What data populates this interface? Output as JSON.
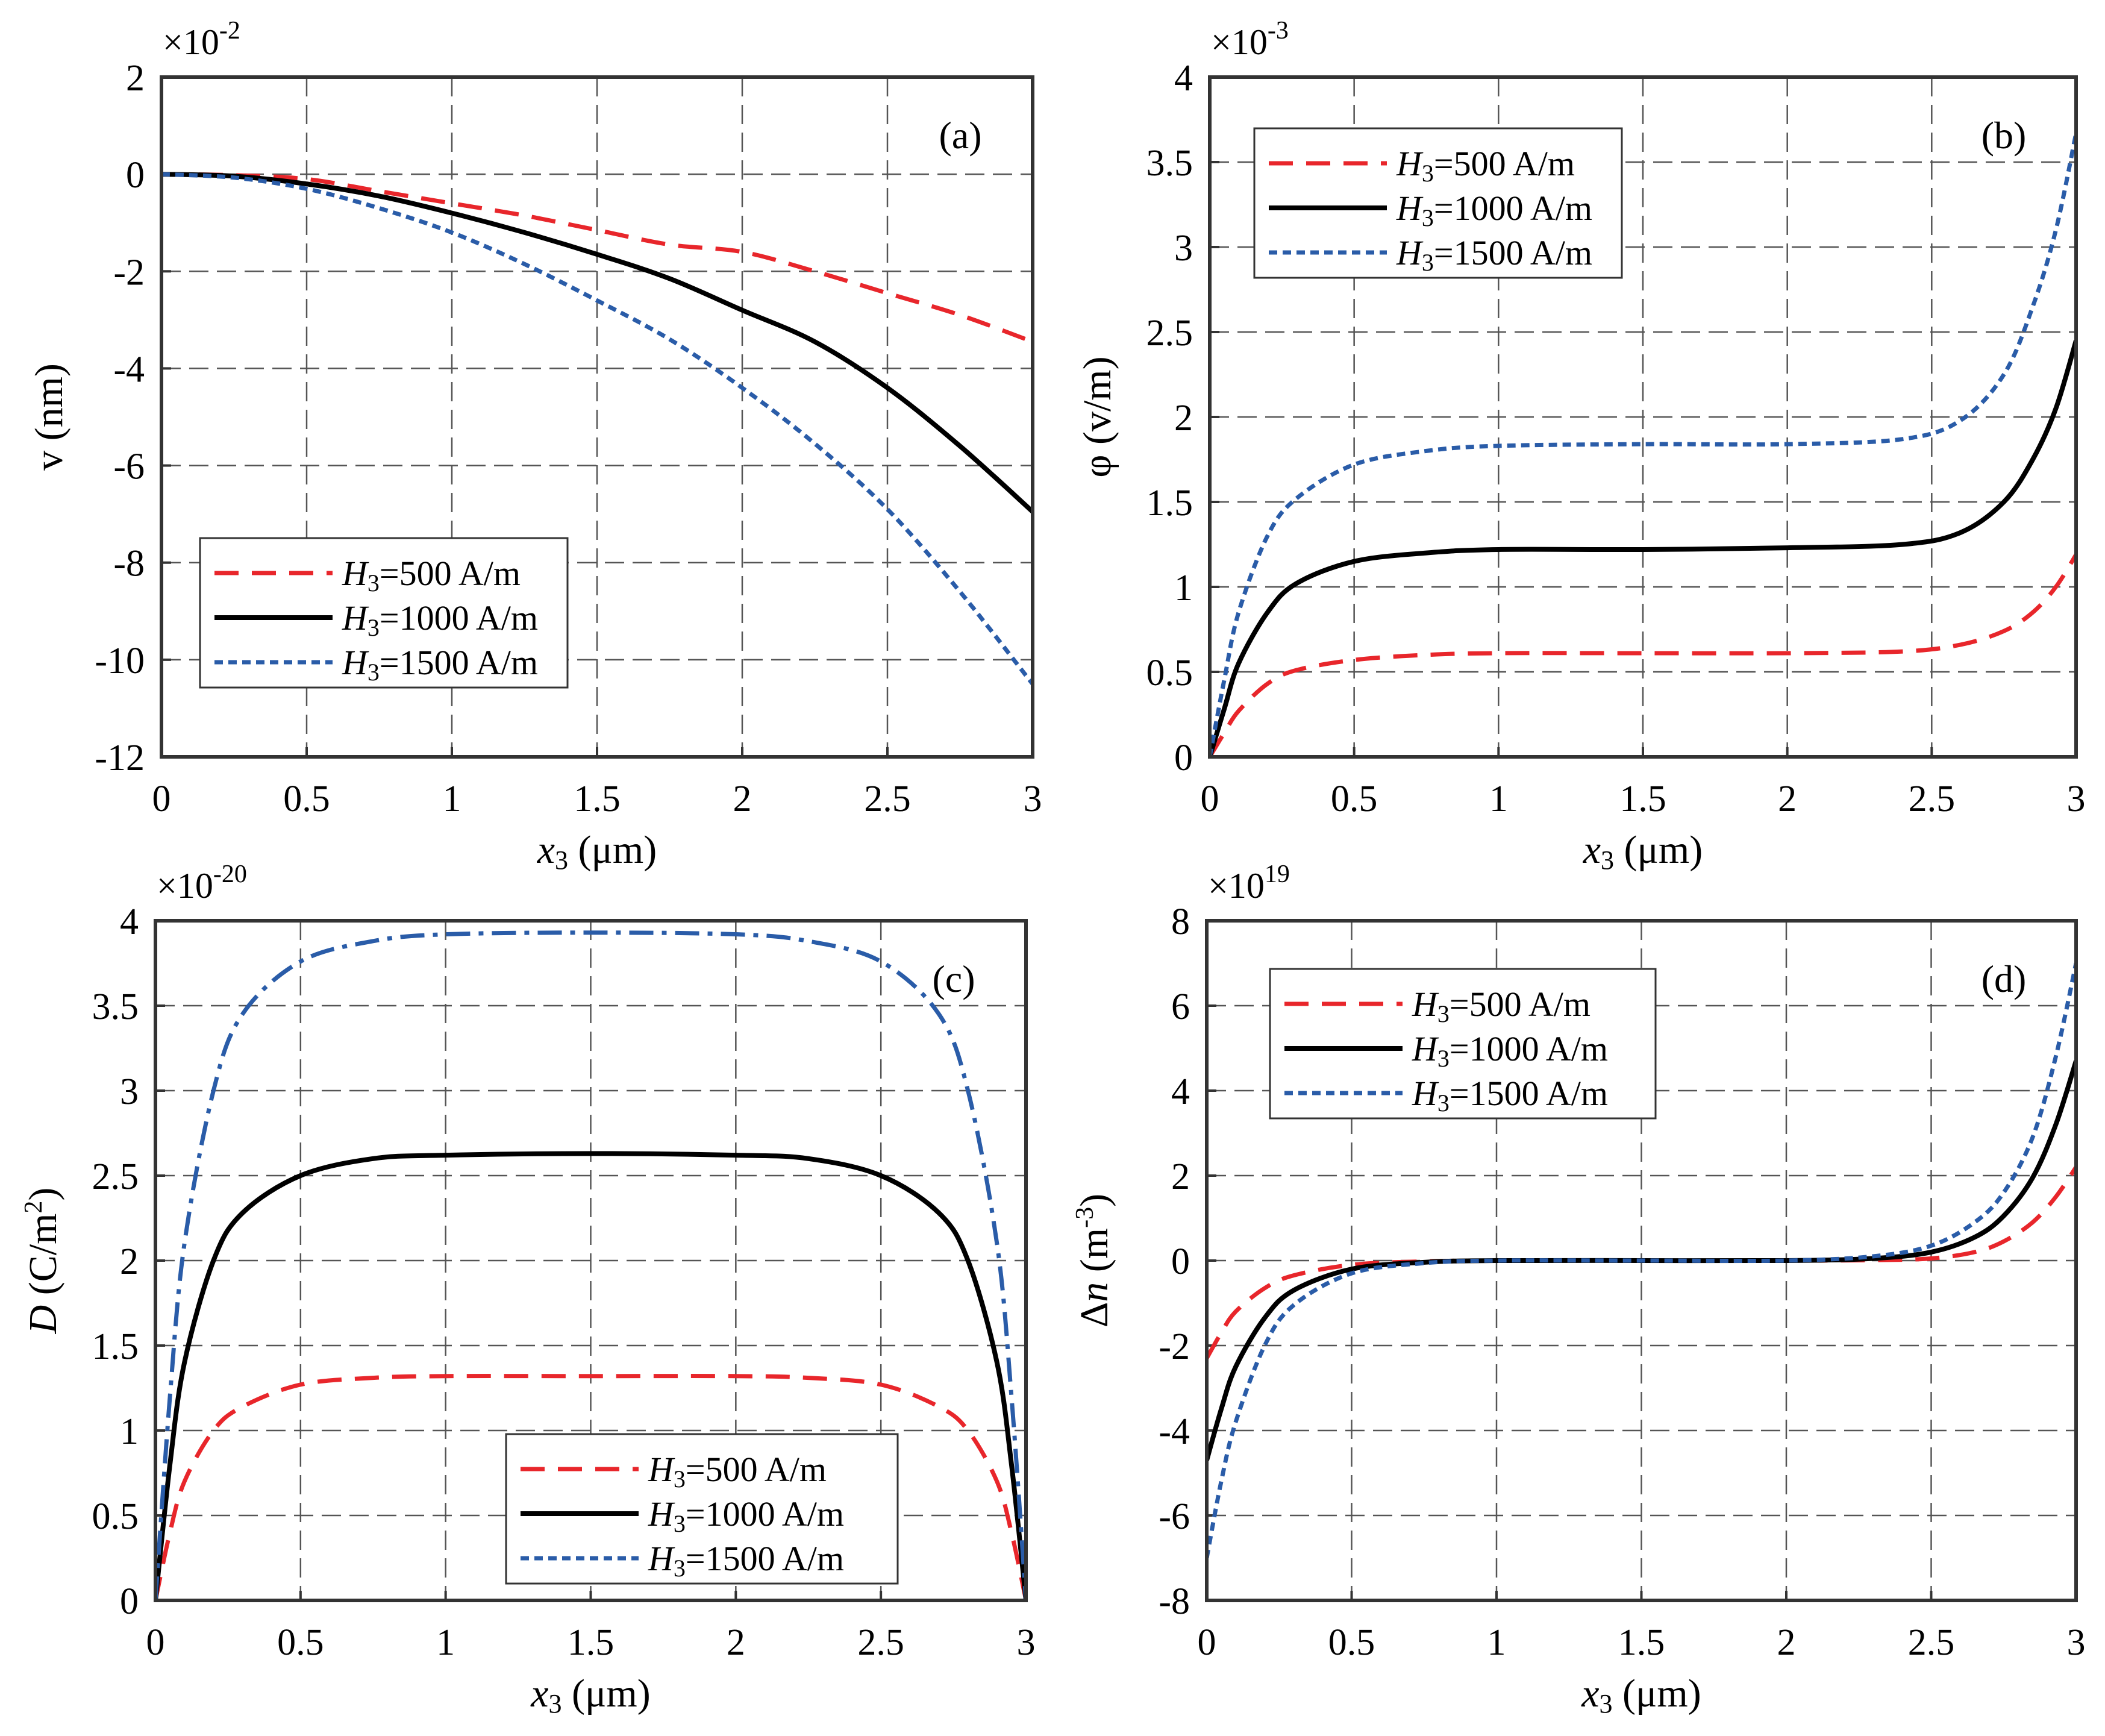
{
  "colors": {
    "red": "#e8262b",
    "black": "#000000",
    "blue": "#2a5ca8"
  },
  "legend_entries": [
    "=500 A/m",
    "=1000 A/m",
    "=1500 A/m"
  ],
  "legend_symbol": "H",
  "legend_symbol_sub": "3",
  "chart_data": [
    {
      "type": "line",
      "panel_label": "(a)",
      "exponent_text": "×10",
      "exponent": "-2",
      "ylabel": "v (nm)",
      "xlabel_main": "x",
      "xlabel_sub": "3",
      "xlabel_unit": " (μm)",
      "xlim": [
        0,
        3
      ],
      "ylim": [
        -12,
        2
      ],
      "xticks": [
        "0",
        "0.5",
        "1",
        "1.5",
        "2",
        "2.5",
        "3"
      ],
      "yticks": [
        "-12",
        "-10",
        "-8",
        "-6",
        "-4",
        "-2",
        "0",
        "2"
      ],
      "legend_position": "bottom-left",
      "x": [
        0,
        0.25,
        0.5,
        0.75,
        1,
        1.25,
        1.5,
        1.75,
        2,
        2.25,
        2.5,
        2.75,
        3
      ],
      "series": [
        {
          "values": [
            0,
            -0.02,
            -0.1,
            -0.35,
            -0.6,
            -0.85,
            -1.15,
            -1.45,
            -1.6,
            -2.0,
            -2.45,
            -2.9,
            -3.45
          ]
        },
        {
          "values": [
            0,
            -0.04,
            -0.2,
            -0.45,
            -0.8,
            -1.2,
            -1.65,
            -2.15,
            -2.8,
            -3.45,
            -4.4,
            -5.6,
            -6.95
          ]
        },
        {
          "values": [
            0,
            -0.07,
            -0.3,
            -0.7,
            -1.2,
            -1.85,
            -2.6,
            -3.4,
            -4.4,
            -5.55,
            -6.9,
            -8.6,
            -10.5
          ]
        }
      ]
    },
    {
      "type": "line",
      "panel_label": "(b)",
      "exponent_text": "×10",
      "exponent": "-3",
      "ylabel": "φ (v/m)",
      "xlabel_main": "x",
      "xlabel_sub": "3",
      "xlabel_unit": " (μm)",
      "xlim": [
        0,
        3
      ],
      "ylim": [
        0,
        4
      ],
      "xticks": [
        "0",
        "0.5",
        "1",
        "1.5",
        "2",
        "2.5",
        "3"
      ],
      "yticks": [
        "0",
        "0.5",
        "1",
        "1.5",
        "2",
        "2.5",
        "3",
        "3.5",
        "4"
      ],
      "legend_position": "top-left",
      "x": [
        0,
        0.05,
        0.1,
        0.2,
        0.3,
        0.5,
        0.75,
        1,
        1.5,
        2,
        2.4,
        2.6,
        2.75,
        2.85,
        2.93,
        3
      ],
      "series": [
        {
          "values": [
            0,
            0.14,
            0.27,
            0.43,
            0.51,
            0.57,
            0.6,
            0.61,
            0.61,
            0.61,
            0.62,
            0.66,
            0.74,
            0.85,
            1.0,
            1.19
          ]
        },
        {
          "values": [
            0,
            0.28,
            0.55,
            0.85,
            1.02,
            1.15,
            1.2,
            1.22,
            1.22,
            1.23,
            1.25,
            1.32,
            1.5,
            1.75,
            2.05,
            2.45
          ]
        },
        {
          "values": [
            0,
            0.45,
            0.85,
            1.3,
            1.52,
            1.72,
            1.8,
            1.83,
            1.84,
            1.84,
            1.87,
            1.98,
            2.25,
            2.65,
            3.1,
            3.67
          ]
        }
      ]
    },
    {
      "type": "line",
      "panel_label": "(c)",
      "exponent_text": "×10",
      "exponent": "-20",
      "ylabel_main": "D",
      "ylabel_unit": "  (C/m",
      "ylabel_sup": "2",
      "ylabel_close": ")",
      "xlabel_main": "x",
      "xlabel_sub": "3",
      "xlabel_unit": " (μm)",
      "xlim": [
        0,
        3
      ],
      "ylim": [
        0,
        4
      ],
      "xticks": [
        "0",
        "0.5",
        "1",
        "1.5",
        "2",
        "2.5",
        "3"
      ],
      "yticks": [
        "0",
        "0.5",
        "1",
        "1.5",
        "2",
        "2.5",
        "3",
        "3.5",
        "4"
      ],
      "legend_position": "bottom-right",
      "x": [
        0,
        0.05,
        0.1,
        0.2,
        0.3,
        0.5,
        0.75,
        1,
        1.5,
        2,
        2.25,
        2.5,
        2.7,
        2.8,
        2.9,
        2.95,
        3
      ],
      "series": [
        {
          "values": [
            0,
            0.4,
            0.7,
            1.0,
            1.14,
            1.27,
            1.31,
            1.32,
            1.32,
            1.32,
            1.31,
            1.27,
            1.14,
            1.0,
            0.7,
            0.4,
            0
          ]
        },
        {
          "values": [
            0,
            0.8,
            1.4,
            2.0,
            2.28,
            2.5,
            2.6,
            2.62,
            2.63,
            2.62,
            2.6,
            2.5,
            2.28,
            2.0,
            1.4,
            0.8,
            0
          ]
        },
        {
          "values": [
            0,
            1.2,
            2.1,
            3.0,
            3.45,
            3.76,
            3.88,
            3.92,
            3.93,
            3.92,
            3.88,
            3.76,
            3.45,
            3.0,
            2.1,
            1.2,
            0
          ]
        }
      ]
    },
    {
      "type": "line",
      "panel_label": "(d)",
      "exponent_text": "×10",
      "exponent": "19",
      "ylabel_main": "Δ",
      "ylabel_italic": "n",
      "ylabel_unit": " (m",
      "ylabel_sup": "-3",
      "ylabel_close": ")",
      "xlabel_main": "x",
      "xlabel_sub": "3",
      "xlabel_unit": " (μm)",
      "xlim": [
        0,
        3
      ],
      "ylim": [
        -8,
        8
      ],
      "xticks": [
        "0",
        "0.5",
        "1",
        "1.5",
        "2",
        "2.5",
        "3"
      ],
      "yticks": [
        "-8",
        "-6",
        "-4",
        "-2",
        "0",
        "2",
        "4",
        "6",
        "8"
      ],
      "legend_position": "top-left",
      "x": [
        0,
        0.05,
        0.1,
        0.2,
        0.3,
        0.5,
        0.75,
        1,
        1.5,
        2,
        2.3,
        2.5,
        2.65,
        2.75,
        2.85,
        2.93,
        3
      ],
      "series": [
        {
          "values": [
            -2.3,
            -1.7,
            -1.2,
            -0.65,
            -0.35,
            -0.1,
            -0.02,
            0,
            0,
            0,
            0.01,
            0.05,
            0.2,
            0.45,
            0.9,
            1.5,
            2.2
          ]
        },
        {
          "values": [
            -4.7,
            -3.5,
            -2.5,
            -1.35,
            -0.7,
            -0.2,
            -0.04,
            0,
            0,
            0,
            0.05,
            0.2,
            0.55,
            1.05,
            1.95,
            3.2,
            4.7
          ]
        },
        {
          "values": [
            -7.0,
            -5.2,
            -3.8,
            -2.0,
            -1.05,
            -0.3,
            -0.06,
            0,
            0,
            0,
            0.1,
            0.35,
            0.9,
            1.6,
            2.9,
            4.8,
            7.0
          ]
        }
      ]
    }
  ]
}
